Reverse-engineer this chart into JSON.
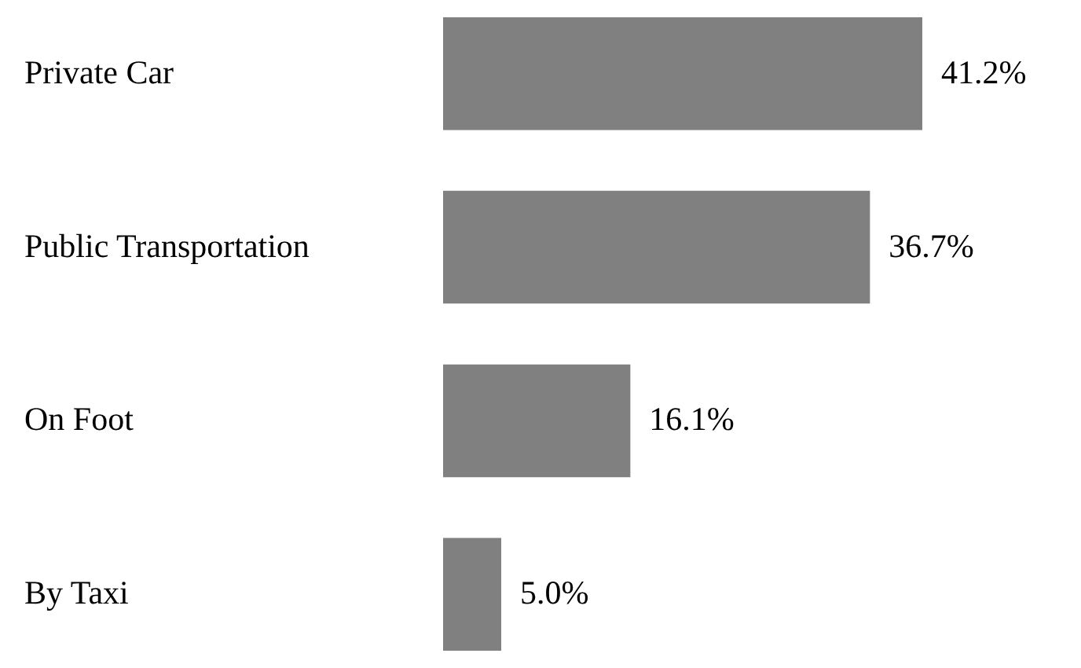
{
  "chart_data": {
    "type": "bar",
    "orientation": "horizontal",
    "categories": [
      "Private Car",
      "Public Transportation",
      "On Foot",
      "By Taxi"
    ],
    "values": [
      41.2,
      36.7,
      16.1,
      5.0
    ],
    "value_labels": [
      "41.2%",
      "36.7%",
      "16.1%",
      "5.0%"
    ],
    "color": "#808080"
  }
}
